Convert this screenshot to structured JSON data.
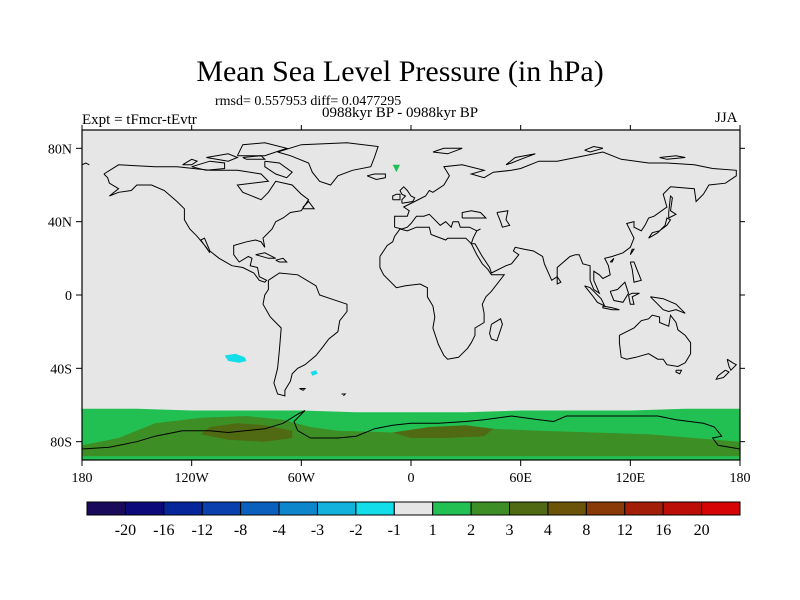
{
  "header": {
    "title": "Mean Sea Level Pressure (in hPa)",
    "stats": "rmsd= 0.557953 diff= 0.0477295",
    "period": "0988kyr BP - 0988kyr BP",
    "experiment": "Expt = tFmcr-tEvtr",
    "season": "JJA"
  },
  "chart_data": {
    "type": "heatmap",
    "title": "Mean Sea Level Pressure (in hPa)",
    "projection": "cylindrical-equidistant",
    "x_range": [
      -180,
      180
    ],
    "y_range": [
      -90,
      90
    ],
    "x_ticks": [
      {
        "value": -180,
        "label": "180"
      },
      {
        "value": -120,
        "label": "120W"
      },
      {
        "value": -60,
        "label": "60W"
      },
      {
        "value": 0,
        "label": "0"
      },
      {
        "value": 60,
        "label": "60E"
      },
      {
        "value": 120,
        "label": "120E"
      },
      {
        "value": 180,
        "label": "180"
      }
    ],
    "y_ticks": [
      {
        "value": 80,
        "label": "80N"
      },
      {
        "value": 40,
        "label": "40N"
      },
      {
        "value": 0,
        "label": "0"
      },
      {
        "value": -40,
        "label": "40S"
      },
      {
        "value": -80,
        "label": "80S"
      }
    ],
    "background_color": "#e6e6e6",
    "colorbar": {
      "labels": [
        "-20",
        "-16",
        "-12",
        "-8",
        "-4",
        "-3",
        "-2",
        "-1",
        "1",
        "2",
        "3",
        "4",
        "8",
        "12",
        "16",
        "20"
      ],
      "colors": [
        "#1a0a5c",
        "#0c0a7a",
        "#06269a",
        "#0a3fae",
        "#0b5fbd",
        "#0d86cc",
        "#12b2dd",
        "#12dde8",
        "#e6e6e6",
        "#22c052",
        "#3e8e26",
        "#4f6a12",
        "#6b5408",
        "#8a3a06",
        "#a21e06",
        "#ba0e06",
        "#d60404"
      ]
    },
    "regions": [
      {
        "name": "southern-ocean-positive-band",
        "level": "1 to 2",
        "color": "#22c052",
        "points": [
          [
            -180,
            -62
          ],
          [
            -150,
            -62
          ],
          [
            -120,
            -63
          ],
          [
            -90,
            -63
          ],
          [
            -60,
            -63
          ],
          [
            -30,
            -64
          ],
          [
            0,
            -64
          ],
          [
            30,
            -64
          ],
          [
            60,
            -63
          ],
          [
            90,
            -63
          ],
          [
            120,
            -63
          ],
          [
            150,
            -62
          ],
          [
            180,
            -62
          ],
          [
            180,
            -90
          ],
          [
            -180,
            -90
          ]
        ]
      },
      {
        "name": "antarctic-positive-core",
        "level": "2 to 3",
        "color": "#3e8e26",
        "points": [
          [
            -140,
            -70
          ],
          [
            -115,
            -67
          ],
          [
            -90,
            -66
          ],
          [
            -70,
            -68
          ],
          [
            -55,
            -72
          ],
          [
            -40,
            -74
          ],
          [
            -10,
            -75
          ],
          [
            20,
            -72
          ],
          [
            45,
            -73
          ],
          [
            70,
            -74
          ],
          [
            100,
            -75
          ],
          [
            130,
            -76
          ],
          [
            155,
            -78
          ],
          [
            180,
            -80
          ],
          [
            180,
            -88
          ],
          [
            -180,
            -88
          ],
          [
            -180,
            -82
          ],
          [
            -160,
            -78
          ]
        ]
      },
      {
        "name": "amundsen-sea-high",
        "level": "3 to 4",
        "color": "#4f6a12",
        "points": [
          [
            -110,
            -72
          ],
          [
            -95,
            -70
          ],
          [
            -80,
            -71
          ],
          [
            -65,
            -74
          ],
          [
            -65,
            -78
          ],
          [
            -80,
            -80
          ],
          [
            -100,
            -79
          ],
          [
            -115,
            -76
          ]
        ]
      },
      {
        "name": "weddell-sea-high",
        "level": "3 to 4",
        "color": "#4f6a12",
        "points": [
          [
            -10,
            -75
          ],
          [
            10,
            -72
          ],
          [
            30,
            -71
          ],
          [
            45,
            -73
          ],
          [
            40,
            -77
          ],
          [
            20,
            -78
          ],
          [
            0,
            -78
          ]
        ]
      },
      {
        "name": "south-pacific-negative",
        "level": "-2 to -1",
        "color": "#12dde8",
        "points": [
          [
            -102,
            -33
          ],
          [
            -96,
            -32
          ],
          [
            -91,
            -34
          ],
          [
            -90,
            -36
          ],
          [
            -94,
            -37
          ],
          [
            -100,
            -36
          ]
        ]
      },
      {
        "name": "south-atlantic-negative-speck",
        "level": "-2 to -1",
        "color": "#12dde8",
        "points": [
          [
            -55,
            -42
          ],
          [
            -52,
            -41
          ],
          [
            -51,
            -43
          ],
          [
            -54,
            -44
          ]
        ]
      },
      {
        "name": "north-atlantic-positive-speck",
        "level": "1 to 2",
        "color": "#22c052",
        "points": [
          [
            -10,
            71
          ],
          [
            -6,
            71
          ],
          [
            -8,
            67
          ]
        ]
      }
    ]
  }
}
